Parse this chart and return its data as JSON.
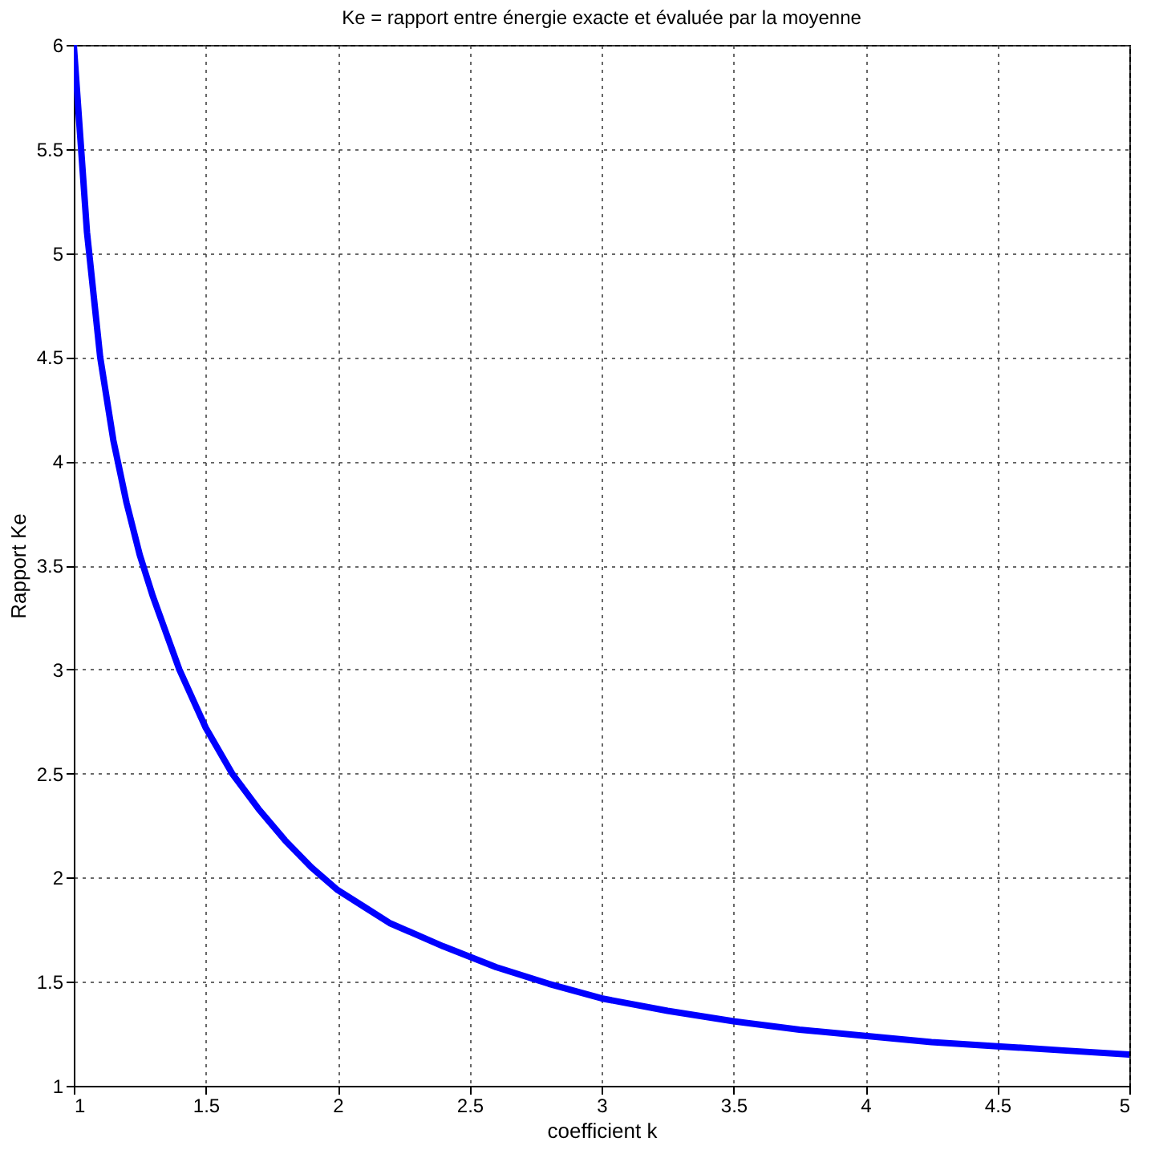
{
  "chart_data": {
    "type": "line",
    "title": "Ke = rapport entre énergie exacte et évaluée par la moyenne",
    "xlabel": "coefficient k",
    "ylabel": "Rapport Ke",
    "x": [
      1,
      1.05,
      1.1,
      1.15,
      1.2,
      1.25,
      1.3,
      1.4,
      1.5,
      1.6,
      1.7,
      1.8,
      1.9,
      2,
      2.1,
      2.2,
      2.4,
      2.6,
      2.8,
      3,
      3.25,
      3.5,
      3.75,
      4,
      4.25,
      4.5,
      4.75,
      5
    ],
    "series": [
      {
        "color": "#0000ff",
        "values": [
          6,
          5.1,
          4.5,
          4.1,
          3.8,
          3.55,
          3.35,
          3.0,
          2.72,
          2.5,
          2.33,
          2.18,
          2.05,
          1.94,
          1.86,
          1.78,
          1.67,
          1.57,
          1.49,
          1.42,
          1.36,
          1.31,
          1.27,
          1.24,
          1.21,
          1.19,
          1.17,
          1.15
        ]
      }
    ],
    "xlim": [
      1,
      5
    ],
    "ylim": [
      1,
      6
    ],
    "xticks": [
      1,
      1.5,
      2,
      2.5,
      3,
      3.5,
      4,
      4.5,
      5
    ],
    "yticks": [
      1,
      1.5,
      2,
      2.5,
      3,
      3.5,
      4,
      4.5,
      5,
      5.5,
      6
    ],
    "grid": true,
    "line_style": "solid",
    "marker": "none"
  }
}
